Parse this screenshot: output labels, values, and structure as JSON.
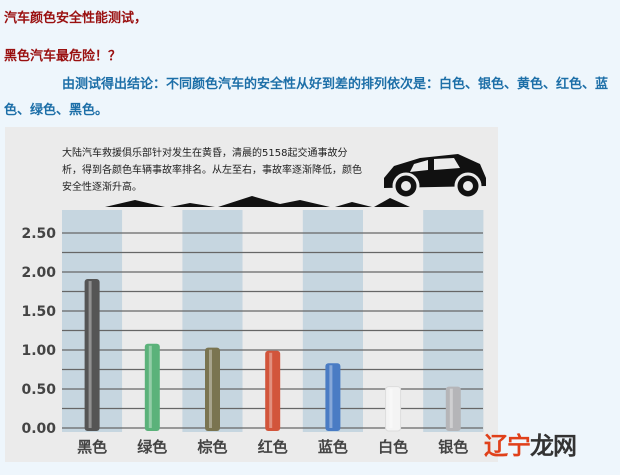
{
  "headline": {
    "line1": "汽车颜色安全性能测试，",
    "line2": "黑色汽车最危险！？"
  },
  "paragraph": "由测试得出结论：不同颜色汽车的安全性从好到差的排列依次是：白色、银色、黄色、红色、蓝色、绿色、黑色。",
  "note": "大陆汽车救援俱乐部针对发生在黄昏，清晨的5158起交通事故分析，得到各颜色车辆事故率排名。从左至右，事故率逐渐降低，颜色安全性逐渐升高。",
  "watermark": {
    "part1": "辽宁",
    "part2": "龙网"
  },
  "chart_data": {
    "type": "bar",
    "categories": [
      "黑色",
      "绿色",
      "棕色",
      "红色",
      "蓝色",
      "白色",
      "银色"
    ],
    "values": [
      1.91,
      1.08,
      1.03,
      0.99,
      0.83,
      0.53,
      0.53
    ],
    "bar_colors": [
      "#555555",
      "#5bb27a",
      "#7a7450",
      "#d2553b",
      "#4a7cc4",
      "#f4f4f4",
      "#b5b5b8"
    ],
    "y_ticks": [
      "0.00",
      "0.50",
      "1.00",
      "1.50",
      "2.00",
      "2.50"
    ],
    "ylim": [
      0,
      2.5
    ],
    "grid": true,
    "title": "",
    "xlabel": "",
    "ylabel": ""
  }
}
